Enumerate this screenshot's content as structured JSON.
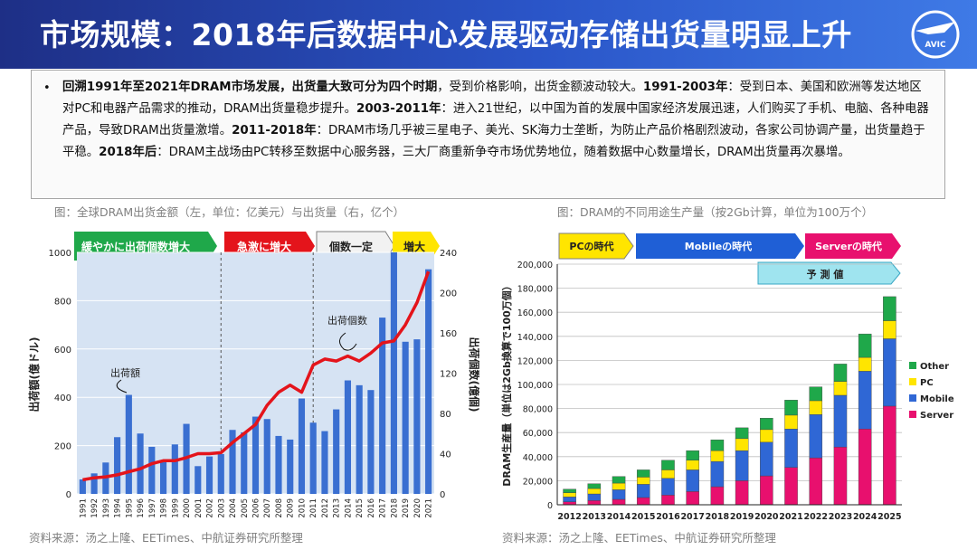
{
  "header": {
    "title": "市场规模：2018年后数据中心发展驱动存储出货量明显上升",
    "logo_text": "AVIC"
  },
  "intro": {
    "bullet": "•",
    "p1_bold": "回溯1991年至2021年DRAM市场发展，出货量大致可分为四个时期",
    "p1_text": "，受到价格影响，出货金额波动较大。",
    "p2_bold": "1991-2003年",
    "p2_text": "：受到日本、美国和欧洲等发达地区对PC和电器产品需求的推动，DRAM出货量稳步提升。",
    "p3_bold": "2003-2011年",
    "p3_text": "：进入21世纪，以中国为首的发展中国家经济发展迅速，人们购买了手机、电脑、各种电器产品，导致DRAM出货量激增。",
    "p4_bold": "2011-2018年",
    "p4_text": "：DRAM市场几乎被三星电子、美光、SK海力士垄断，为防止产品价格剧烈波动，各家公司协调产量，出货量趋于平稳。",
    "p5_bold": "2018年后",
    "p5_text": "：DRAM主战场由PC转移至数据中心服务器，三大厂商重新争夺市场优势地位，随着数据中心数量增长，DRAM出货量再次暴增。"
  },
  "captions": {
    "left": "图：全球DRAM出货金额（左，单位：亿美元）与出货量（右，亿个）",
    "right": "图：DRAM的不同用途生产量（按2Gb计算，单位为100万个）"
  },
  "sources": {
    "left": "资料来源：汤之上隆、EETimes、中航证券研究所整理",
    "right": "资料来源：汤之上隆、EETimes、中航证券研究所整理"
  },
  "colors": {
    "bar_blue": "#3a6fd1",
    "line_red": "#e4141b",
    "server": "#e8106e",
    "mobile": "#2f67d5",
    "pc": "#ffe500",
    "other": "#1fa84a"
  },
  "chart_data": [
    {
      "type": "bar",
      "title": "全球DRAM出货金额与出货量",
      "ylabel": "出荷額(億ドル)",
      "y2label": "出荷個数(億個)",
      "ylim": [
        0,
        1000
      ],
      "yticks": [
        "0",
        "200",
        "400",
        "600",
        "800",
        "1000"
      ],
      "y2lim": [
        0,
        240
      ],
      "y2ticks": [
        "0",
        "40",
        "80",
        "120",
        "160",
        "200",
        "240"
      ],
      "categories": [
        "1991",
        "1992",
        "1993",
        "1994",
        "1995",
        "1996",
        "1997",
        "1998",
        "1999",
        "2000",
        "2001",
        "2002",
        "2003",
        "2004",
        "2005",
        "2006",
        "2007",
        "2008",
        "2009",
        "2010",
        "2011",
        "2012",
        "2013",
        "2014",
        "2015",
        "2016",
        "2017",
        "2018",
        "2019",
        "2020",
        "2021"
      ],
      "series": [
        {
          "name": "出荷額",
          "kind": "bar",
          "axis": "left",
          "values": [
            60,
            85,
            130,
            235,
            410,
            250,
            195,
            140,
            205,
            290,
            115,
            155,
            165,
            265,
            255,
            320,
            310,
            240,
            225,
            395,
            295,
            260,
            350,
            470,
            450,
            430,
            730,
            1000,
            630,
            640,
            930
          ]
        },
        {
          "name": "出荷個数",
          "kind": "line",
          "axis": "right",
          "values": [
            14,
            16,
            17,
            19,
            22,
            25,
            30,
            33,
            33,
            36,
            40,
            40,
            41,
            51,
            60,
            69,
            88,
            101,
            108,
            101,
            128,
            134,
            132,
            137,
            132,
            140,
            150,
            152,
            168,
            190,
            221
          ]
        }
      ],
      "phases": [
        "緩やかに出荷個数増大",
        "急激に増大",
        "個数一定",
        "増大"
      ],
      "annotations": [
        "出荷額",
        "出荷個数"
      ]
    },
    {
      "type": "bar",
      "stacked": true,
      "title": "DRAM的不同用途生产量",
      "ylabel": "DRAM生産量（単位は2Gb換算で100万個）",
      "ylim": [
        0,
        200000
      ],
      "yticks": [
        "0",
        "20,000",
        "40,000",
        "60,000",
        "80,000",
        "100,000",
        "120,000",
        "140,000",
        "160,000",
        "180,000",
        "200,000"
      ],
      "categories": [
        "2012",
        "2013",
        "2014",
        "2015",
        "2016",
        "2017",
        "2018",
        "2019",
        "2020",
        "2021",
        "2022",
        "2023",
        "2024",
        "2025"
      ],
      "series": [
        {
          "name": "Server",
          "values": [
            2500,
            3500,
            4500,
            6000,
            8000,
            11000,
            15000,
            20000,
            24000,
            31000,
            39000,
            48000,
            63000,
            82000
          ]
        },
        {
          "name": "Mobile",
          "values": [
            4000,
            5500,
            8000,
            11000,
            14000,
            18000,
            21000,
            25000,
            28000,
            32000,
            36000,
            43000,
            48000,
            56000
          ]
        },
        {
          "name": "PC",
          "values": [
            3500,
            4500,
            5500,
            6000,
            7000,
            8000,
            9000,
            10000,
            10500,
            11500,
            11500,
            11500,
            11500,
            15000
          ]
        },
        {
          "name": "Other",
          "values": [
            3000,
            4000,
            5500,
            6000,
            8000,
            8000,
            9000,
            9000,
            9500,
            12500,
            11500,
            14500,
            19500,
            20000
          ]
        }
      ],
      "legend": [
        "Other",
        "PC",
        "Mobile",
        "Server"
      ],
      "legend_position": "right",
      "phases": [
        "PCの時代",
        "Mobileの時代",
        "Serverの時代"
      ],
      "forecast_label": "予 測 値"
    }
  ]
}
